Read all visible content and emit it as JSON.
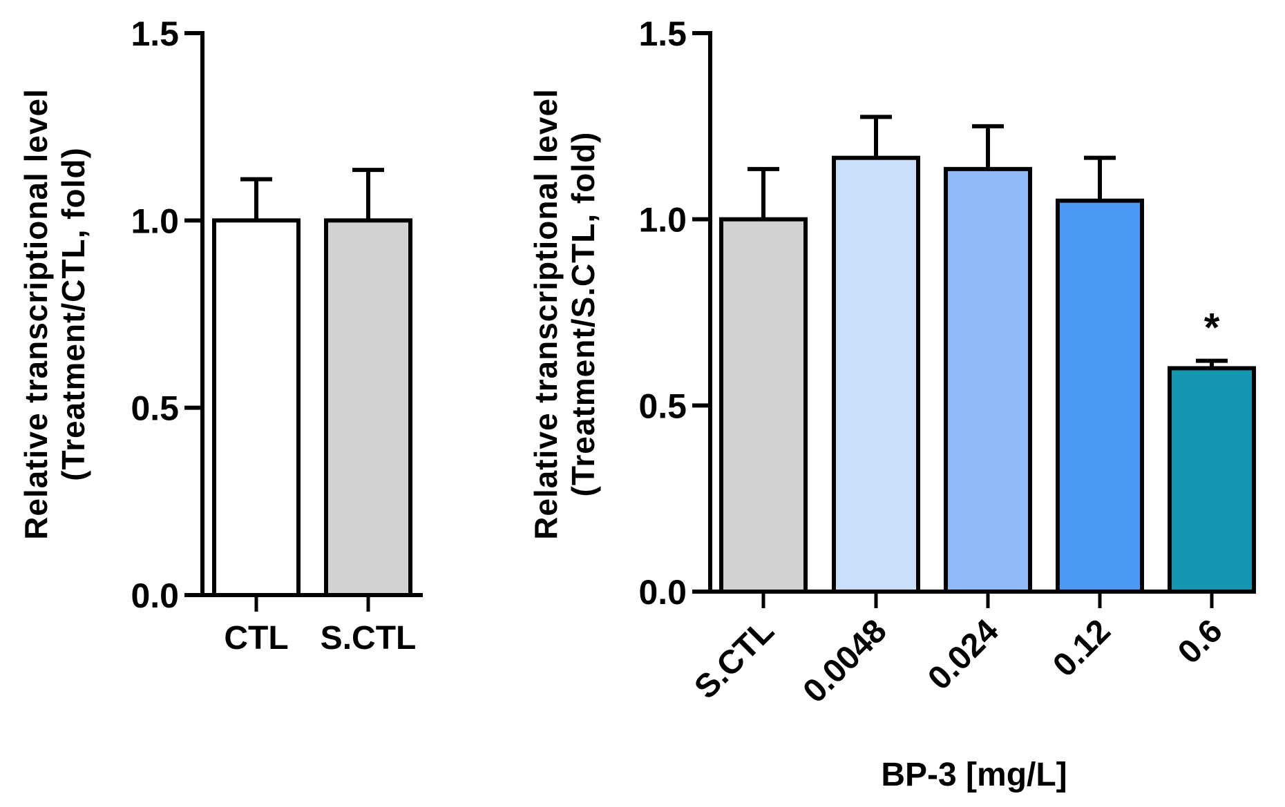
{
  "chart_data": [
    {
      "type": "bar",
      "ylabel_line1": "Relative transcriptional level",
      "ylabel_line2": "(Treatment/CTL, fold)",
      "xlabel": "",
      "ylim": [
        0,
        1.5
      ],
      "yticks": [
        "0.0",
        "0.5",
        "1.0",
        "1.5"
      ],
      "yticks_values": [
        0,
        0.5,
        1.0,
        1.5
      ],
      "categories": [
        "CTL",
        "S.CTL"
      ],
      "values": [
        1.0,
        1.0
      ],
      "errors": [
        0.11,
        0.135
      ],
      "colors": [
        "#ffffff",
        "#d3d3d3"
      ],
      "annotations": [
        "",
        ""
      ]
    },
    {
      "type": "bar",
      "ylabel_line1": "Relative transcriptional level",
      "ylabel_line2": "(Treatment/S.CTL, fold)",
      "xlabel": "BP-3 [mg/L]",
      "ylim": [
        0,
        1.5
      ],
      "yticks": [
        "0.0",
        "0.5",
        "1.0",
        "1.5"
      ],
      "yticks_values": [
        0,
        0.5,
        1.0,
        1.5
      ],
      "categories": [
        "S.CTL",
        "0.0048",
        "0.024",
        "0.12",
        "0.6"
      ],
      "values": [
        1.0,
        1.165,
        1.135,
        1.05,
        0.6
      ],
      "errors": [
        0.135,
        0.11,
        0.115,
        0.115,
        0.02
      ],
      "colors": [
        "#d3d3d3",
        "#c9dffa",
        "#8fbaf5",
        "#4d9af4",
        "#1496b0"
      ],
      "annotations": [
        "",
        "",
        "",
        "",
        "*"
      ]
    }
  ]
}
